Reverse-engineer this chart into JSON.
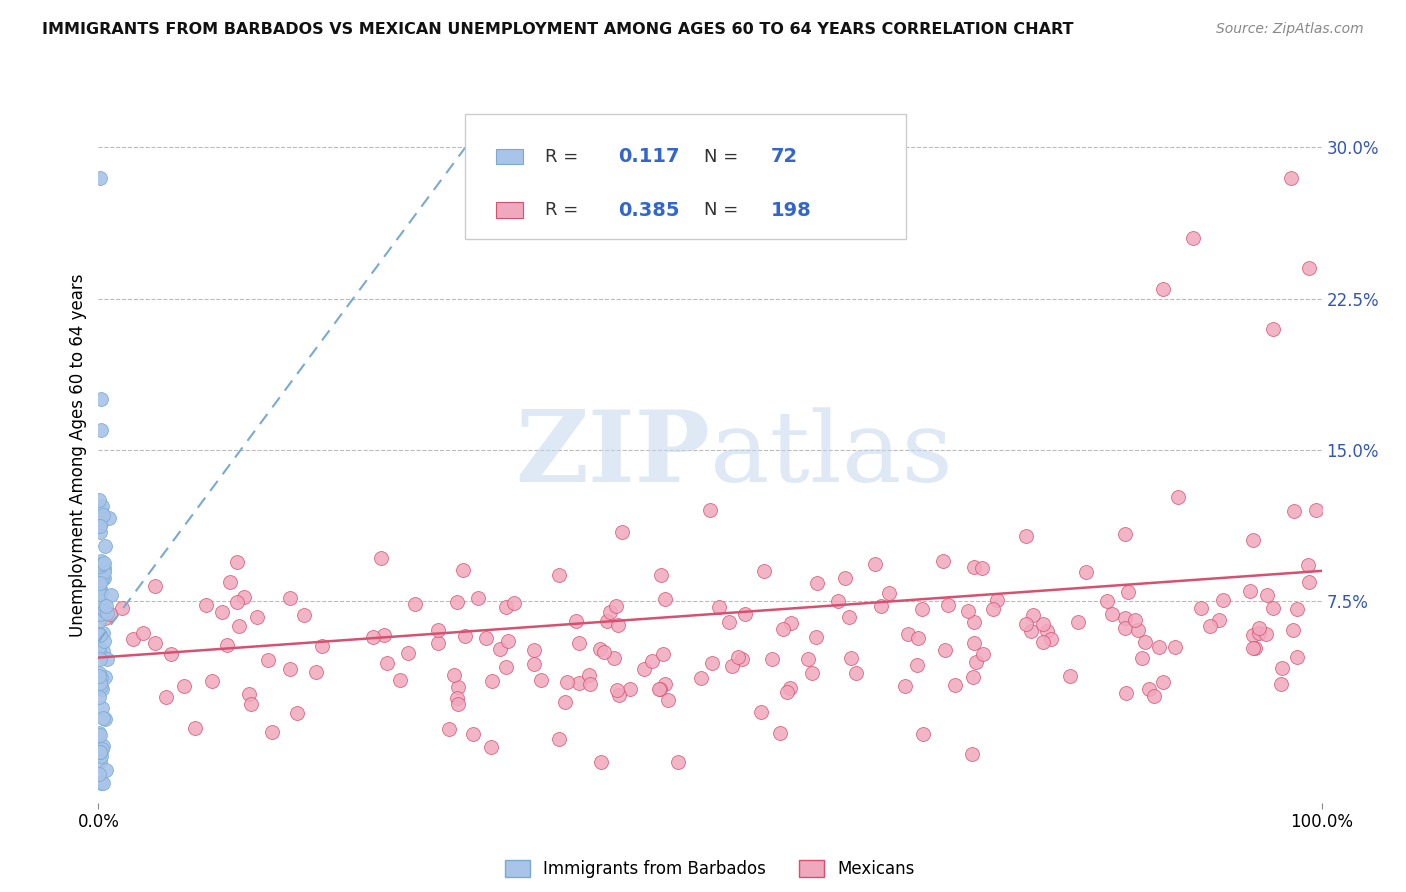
{
  "title": "IMMIGRANTS FROM BARBADOS VS MEXICAN UNEMPLOYMENT AMONG AGES 60 TO 64 YEARS CORRELATION CHART",
  "source": "Source: ZipAtlas.com",
  "ylabel": "Unemployment Among Ages 60 to 64 years",
  "xlim": [
    0.0,
    1.0
  ],
  "ylim": [
    -0.025,
    0.32
  ],
  "ytick_vals": [
    0.075,
    0.15,
    0.225,
    0.3
  ],
  "ytick_labels": [
    "7.5%",
    "15.0%",
    "22.5%",
    "30.0%"
  ],
  "xtick_vals": [
    0.0,
    1.0
  ],
  "xtick_labels": [
    "0.0%",
    "100.0%"
  ],
  "barbados_R": 0.117,
  "barbados_N": 72,
  "mexicans_R": 0.385,
  "mexicans_N": 198,
  "barbados_color": "#a8c4e8",
  "mexicans_color": "#f0a8be",
  "trendline_barbados_color": "#7aaad0",
  "trendline_mexicans_color": "#d85070",
  "legend_barbados": "Immigrants from Barbados",
  "legend_mexicans": "Mexicans",
  "watermark_zip": "ZIP",
  "watermark_atlas": "atlas",
  "title_fontsize": 11.5,
  "source_fontsize": 10,
  "ylabel_fontsize": 12,
  "tick_fontsize": 12,
  "legend_fontsize": 12
}
